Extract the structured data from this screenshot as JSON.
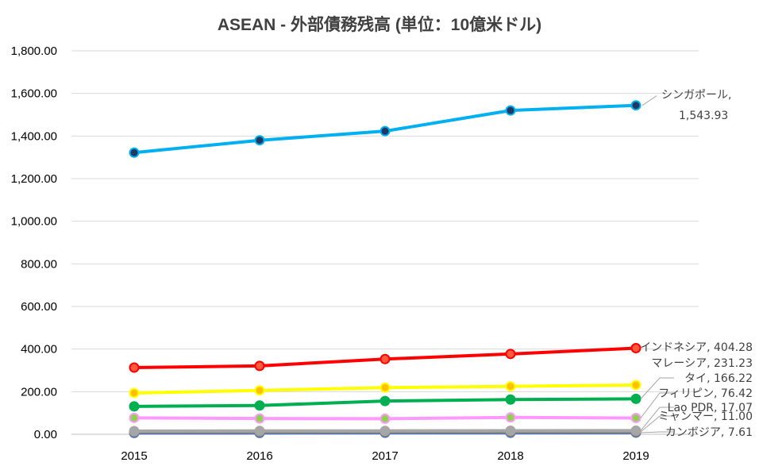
{
  "chart_data": {
    "type": "line",
    "title": "ASEAN - 外部債務残高 (単位：10億米ドル)",
    "xlabel": "",
    "ylabel": "",
    "categories": [
      "2015",
      "2016",
      "2017",
      "2018",
      "2019"
    ],
    "ylim": [
      0,
      1800
    ],
    "yticks": [
      "0.00",
      "200.00",
      "400.00",
      "600.00",
      "800.00",
      "1,000.00",
      "1,200.00",
      "1,400.00",
      "1,600.00",
      "1,800.00"
    ],
    "grid": "horizontal",
    "legend": "none",
    "series": [
      {
        "name": "シンガポール",
        "color": "#00b0f0",
        "marker": "#1f3864",
        "values": [
          1322,
          1380,
          1423,
          1520,
          1543.93
        ],
        "label_lines": [
          "シンガポール,",
          "1,543.93"
        ]
      },
      {
        "name": "インドネシア",
        "color": "#ff0000",
        "marker": "#ff5a3c",
        "values": [
          313,
          321,
          353,
          377,
          404.28
        ],
        "label_lines": [
          "インドネシア, 404.28"
        ]
      },
      {
        "name": "マレーシア",
        "color": "#ffff00",
        "marker": "#ffc000",
        "values": [
          194,
          206,
          219,
          225,
          231.23
        ],
        "label_lines": [
          "マレーシア, 231.23"
        ]
      },
      {
        "name": "タイ",
        "color": "#00b050",
        "marker": "#00b050",
        "values": [
          131,
          135,
          156,
          163,
          166.22
        ],
        "label_lines": [
          "タイ, 166.22"
        ]
      },
      {
        "name": "フィリピン",
        "color": "#ff99ff",
        "marker": "#92d050",
        "values": [
          77,
          74,
          73,
          79,
          76.42
        ],
        "label_lines": [
          "フィリピン, 76.42"
        ]
      },
      {
        "name": "Lao PDR",
        "color": "#a6a6a6",
        "marker": "#a6a6a6",
        "values": [
          15,
          16,
          16,
          17,
          17.07
        ],
        "label_lines": [
          "Lao PDR, 17.07"
        ]
      },
      {
        "name": "ミャンマー",
        "color": "#7f7f7f",
        "marker": "#a6a6a6",
        "values": [
          10,
          10,
          11,
          11,
          11.0
        ],
        "label_lines": [
          "ミャンマー, 11.00"
        ]
      },
      {
        "name": "カンボジア",
        "color": "#4472c4",
        "marker": "#9dc3e6",
        "values": [
          6,
          6,
          7,
          7,
          7.61
        ],
        "label_lines": [
          "カンボジア, 7.61"
        ]
      }
    ]
  }
}
